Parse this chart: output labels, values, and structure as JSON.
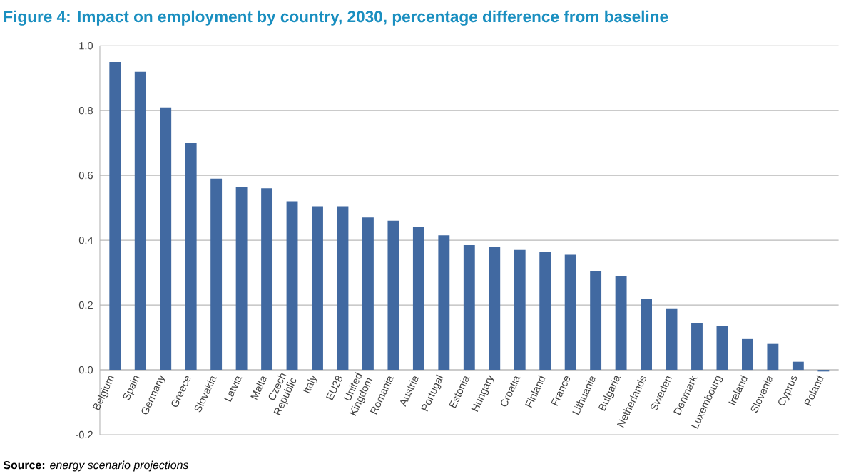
{
  "chart_data": {
    "type": "bar",
    "title": "Figure 4: Impact on employment by country, 2030, percentage difference from baseline",
    "categories": [
      "Belgium",
      "Spain",
      "Germany",
      "Greece",
      "Slovakia",
      "Latvia",
      "Malta",
      "Czech Republic",
      "Italy",
      "EU28",
      "United Kingdom",
      "Romania",
      "Austria",
      "Portugal",
      "Estonia",
      "Hungary",
      "Croatia",
      "Finland",
      "France",
      "Lithuania",
      "Bulgaria",
      "Netherlands",
      "Sweden",
      "Denmark",
      "Luxembourg",
      "Ireland",
      "Slovenia",
      "Cyprus",
      "Poland"
    ],
    "values": [
      0.95,
      0.92,
      0.81,
      0.7,
      0.59,
      0.565,
      0.56,
      0.52,
      0.505,
      0.505,
      0.47,
      0.46,
      0.44,
      0.415,
      0.385,
      0.38,
      0.37,
      0.365,
      0.355,
      0.305,
      0.29,
      0.22,
      0.19,
      0.145,
      0.135,
      0.095,
      0.08,
      0.025,
      -0.005
    ],
    "color": "#4169a1",
    "ylim": [
      -0.2,
      1.0
    ],
    "yticks": [
      {
        "value": -0.2,
        "label": "-0.2"
      },
      {
        "value": 0,
        "label": "0.0"
      },
      {
        "value": 0.2,
        "label": "0.2"
      },
      {
        "value": 0.4,
        "label": "0.4"
      },
      {
        "value": 0.6,
        "label": "0.6"
      },
      {
        "value": 0.8,
        "label": "0.8"
      },
      {
        "value": 1.0,
        "label": "1.0"
      }
    ],
    "grid": "y",
    "annotations": [
      "**Source:** *energy scenario projections*"
    ]
  }
}
